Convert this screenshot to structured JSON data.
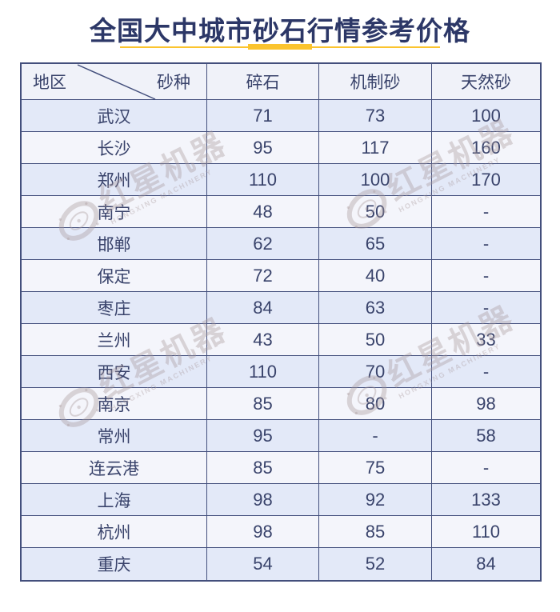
{
  "chart_data": {
    "type": "table",
    "title": "全国大中城市砂石行情参考价格",
    "corner": {
      "row_dimension": "地区",
      "col_dimension": "砂种"
    },
    "columns": [
      "碎石",
      "机制砂",
      "天然砂"
    ],
    "missing_value_symbol": "-",
    "rows": [
      {
        "city": "武汉",
        "values": [
          "71",
          "73",
          "100"
        ]
      },
      {
        "city": "长沙",
        "values": [
          "95",
          "117",
          "160"
        ]
      },
      {
        "city": "郑州",
        "values": [
          "110",
          "100",
          "170"
        ]
      },
      {
        "city": "南宁",
        "values": [
          "48",
          "50",
          "-"
        ]
      },
      {
        "city": "邯郸",
        "values": [
          "62",
          "65",
          "-"
        ]
      },
      {
        "city": "保定",
        "values": [
          "72",
          "40",
          "-"
        ]
      },
      {
        "city": "枣庄",
        "values": [
          "84",
          "63",
          "-"
        ]
      },
      {
        "city": "兰州",
        "values": [
          "43",
          "50",
          "33"
        ]
      },
      {
        "city": "西安",
        "values": [
          "110",
          "70",
          "-"
        ]
      },
      {
        "city": "南京",
        "values": [
          "85",
          "80",
          "98"
        ]
      },
      {
        "city": "常州",
        "values": [
          "95",
          "-",
          "58"
        ]
      },
      {
        "city": "连云港",
        "values": [
          "85",
          "75",
          "-"
        ]
      },
      {
        "city": "上海",
        "values": [
          "98",
          "92",
          "133"
        ]
      },
      {
        "city": "杭州",
        "values": [
          "98",
          "85",
          "110"
        ]
      },
      {
        "city": "重庆",
        "values": [
          "54",
          "52",
          "84"
        ]
      }
    ]
  },
  "watermark": {
    "text": "红星机器",
    "subtext": "HONGXING MACHINERY"
  },
  "colors": {
    "accent_yellow": "#fbc42e",
    "title_navy": "#2c3767",
    "border_blue": "#434f7c",
    "row_dark": "#e3e9f8",
    "row_light": "#f4f5fb",
    "header_bg": "#f0f2f9",
    "cell_text": "#39436b",
    "watermark_gray": "rgba(168,152,154,0.38)"
  }
}
